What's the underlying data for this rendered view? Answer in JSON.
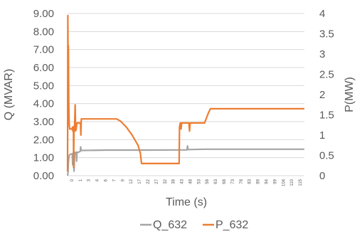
{
  "chart_data": {
    "type": "line",
    "title": "",
    "xlabel": "Time (s)",
    "ylabel_left": "Q (MVAR)",
    "ylabel_right": "P(MW)",
    "x_tick_labels": [
      "0",
      "1",
      "3",
      "4",
      "6",
      "7",
      "9",
      "12",
      "17",
      "22",
      "27",
      "32",
      "38",
      "43",
      "48",
      "53",
      "58",
      "63",
      "68",
      "73",
      "78",
      "83",
      "89",
      "94",
      "99",
      "104",
      "110",
      "115"
    ],
    "xlim": [
      0,
      121
    ],
    "y_left": {
      "lim": [
        0,
        9
      ],
      "ticks": [
        "0.00",
        "1.00",
        "2.00",
        "3.00",
        "4.00",
        "5.00",
        "6.00",
        "7.00",
        "8.00",
        "9.00"
      ]
    },
    "y_right": {
      "lim": [
        0,
        4
      ],
      "ticks": [
        "0",
        "0.5",
        "1",
        "1.5",
        "2",
        "2.5",
        "3",
        "3.5",
        "4"
      ]
    },
    "grid": "horizontal",
    "legend": {
      "position": "bottom",
      "entries": [
        "Q_632",
        "P_632"
      ]
    },
    "series": [
      {
        "name": "Q_632",
        "axis": "left",
        "color": "#a5a5a5",
        "points": [
          [
            0,
            0
          ],
          [
            0.2,
            0.15
          ],
          [
            0.4,
            0.7
          ],
          [
            0.7,
            1.05
          ],
          [
            1.0,
            1.15
          ],
          [
            1.5,
            1.2
          ],
          [
            2.4,
            1.2
          ],
          [
            2.6,
            0.6
          ],
          [
            2.8,
            1.25
          ],
          [
            3.0,
            1.25
          ],
          [
            3.3,
            0.25
          ],
          [
            3.6,
            1.3
          ],
          [
            4.0,
            1.25
          ],
          [
            4.4,
            1.3
          ],
          [
            4.6,
            0.8
          ],
          [
            4.8,
            1.3
          ],
          [
            5.5,
            1.3
          ],
          [
            6.5,
            1.35
          ],
          [
            6.7,
            1.6
          ],
          [
            6.9,
            1.4
          ],
          [
            8,
            1.4
          ],
          [
            20,
            1.42
          ],
          [
            40,
            1.42
          ],
          [
            60,
            1.43
          ],
          [
            61,
            1.43
          ],
          [
            61.3,
            1.65
          ],
          [
            61.6,
            1.45
          ],
          [
            70,
            1.47
          ],
          [
            90,
            1.47
          ],
          [
            121,
            1.47
          ]
        ]
      },
      {
        "name": "P_632",
        "axis": "right",
        "color": "#ed7d31",
        "points": [
          [
            0,
            0.1
          ],
          [
            0.15,
            3.95
          ],
          [
            0.3,
            2.5
          ],
          [
            0.45,
            3.2
          ],
          [
            0.6,
            1.8
          ],
          [
            0.8,
            1.3
          ],
          [
            1.1,
            1.15
          ],
          [
            1.5,
            1.15
          ],
          [
            2.3,
            1.15
          ],
          [
            2.5,
            1.2
          ],
          [
            2.7,
            1.1
          ],
          [
            3.0,
            1.2
          ],
          [
            3.1,
            0.2
          ],
          [
            3.3,
            1.2
          ],
          [
            3.6,
            1.25
          ],
          [
            3.9,
            1.75
          ],
          [
            4.1,
            1.1
          ],
          [
            4.4,
            1.15
          ],
          [
            4.8,
            1.3
          ],
          [
            6.6,
            1.3
          ],
          [
            6.8,
            1.0
          ],
          [
            7.0,
            1.4
          ],
          [
            8,
            1.4
          ],
          [
            25,
            1.4
          ],
          [
            27,
            1.35
          ],
          [
            30,
            1.2
          ],
          [
            33,
            1.0
          ],
          [
            36,
            0.75
          ],
          [
            37.2,
            0.55
          ],
          [
            37.8,
            0.3
          ],
          [
            39,
            0.3
          ],
          [
            55,
            0.3
          ],
          [
            57,
            0.3
          ],
          [
            57.2,
            1.2
          ],
          [
            57.6,
            1.3
          ],
          [
            58,
            1.15
          ],
          [
            58.3,
            1.3
          ],
          [
            62,
            1.3
          ],
          [
            62.3,
            1.1
          ],
          [
            62.6,
            1.3
          ],
          [
            63,
            1.3
          ],
          [
            70,
            1.3
          ],
          [
            72,
            1.55
          ],
          [
            73,
            1.65
          ],
          [
            75,
            1.65
          ],
          [
            121,
            1.65
          ]
        ]
      }
    ]
  }
}
